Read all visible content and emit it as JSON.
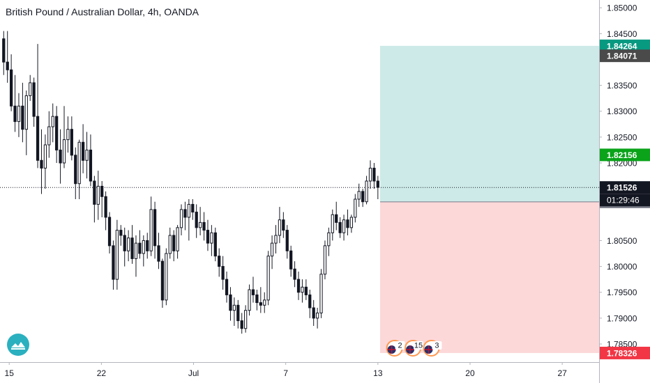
{
  "chart_data": {
    "type": "candlestick",
    "title": "British Pound / Australian Dollar, 4h, OANDA",
    "ylim": [
      1.7815,
      1.8515
    ],
    "y_ticks": [
      "1.85000",
      "1.84500",
      "1.83500",
      "1.83000",
      "1.82500",
      "1.82000",
      "1.80500",
      "1.80000",
      "1.79500",
      "1.79000",
      "1.78500"
    ],
    "x_ticks": [
      "15",
      "22",
      "Jul",
      "7",
      "13",
      "20",
      "27"
    ],
    "x_tick_pos": [
      0.5,
      5.5,
      10.5,
      15.5,
      20.5,
      25.5,
      30.5
    ],
    "x_max": 32.5,
    "current_price": {
      "value": 1.81526,
      "label": "1.81526",
      "countdown": "01:29:46"
    },
    "position": {
      "type": "long",
      "entry": 1.81248,
      "entry_label": "1.81248",
      "target": 1.84264,
      "target_label": "1.84264",
      "stop": 1.78326,
      "stop_label": "1.78326",
      "start_x": 20.62
    },
    "price_labels": [
      {
        "value": 1.84071,
        "label": "1.84071",
        "color": "#4a4a4a"
      },
      {
        "value": 1.82156,
        "label": "1.82156",
        "color": "#0aa319"
      }
    ],
    "events": [
      {
        "x": 21.4,
        "count": "2"
      },
      {
        "x": 22.4,
        "count": "15"
      },
      {
        "x": 23.4,
        "count": "3"
      }
    ],
    "colors": {
      "up": "#131722",
      "down": "#131722",
      "up_fill": "#ffffff",
      "down_fill": "#131722",
      "target_zone": "#cdeae8",
      "stop_zone": "#fcd8d9",
      "target_label": "#089981",
      "stop_label": "#f23645",
      "entry_label": "#787b86",
      "price_label": "#131722",
      "axis_text": "#131722",
      "axis_line": "#b2b5be"
    },
    "candles": [
      [
        1.844,
        1.8455,
        1.837,
        1.8395
      ],
      [
        1.8395,
        1.8455,
        1.8355,
        1.838
      ],
      [
        1.838,
        1.841,
        1.83,
        1.831
      ],
      [
        1.831,
        1.837,
        1.826,
        1.828
      ],
      [
        1.828,
        1.8335,
        1.825,
        1.831
      ],
      [
        1.831,
        1.8355,
        1.824,
        1.8265
      ],
      [
        1.8265,
        1.834,
        1.8215,
        1.833
      ],
      [
        1.833,
        1.837,
        1.832,
        1.8355
      ],
      [
        1.8355,
        1.8365,
        1.827,
        1.829
      ],
      [
        1.829,
        1.843,
        1.819,
        1.8205
      ],
      [
        1.8205,
        1.8265,
        1.814,
        1.819
      ],
      [
        1.819,
        1.8255,
        1.815,
        1.8235
      ],
      [
        1.8235,
        1.83,
        1.821,
        1.827
      ],
      [
        1.827,
        1.8315,
        1.824,
        1.829
      ],
      [
        1.829,
        1.831,
        1.82,
        1.8225
      ],
      [
        1.8225,
        1.8265,
        1.816,
        1.82
      ],
      [
        1.82,
        1.831,
        1.819,
        1.8245
      ],
      [
        1.8245,
        1.829,
        1.822,
        1.8265
      ],
      [
        1.8265,
        1.829,
        1.8205,
        1.8215
      ],
      [
        1.8215,
        1.823,
        1.813,
        1.816
      ],
      [
        1.816,
        1.8245,
        1.813,
        1.824
      ],
      [
        1.824,
        1.8275,
        1.818,
        1.8205
      ],
      [
        1.8205,
        1.826,
        1.817,
        1.8225
      ],
      [
        1.8225,
        1.8255,
        1.8155,
        1.8165
      ],
      [
        1.8165,
        1.8175,
        1.8085,
        1.812
      ],
      [
        1.812,
        1.8185,
        1.809,
        1.8155
      ],
      [
        1.8155,
        1.8165,
        1.8095,
        1.8135
      ],
      [
        1.8135,
        1.8145,
        1.807,
        1.8095
      ],
      [
        1.8095,
        1.8105,
        1.8025,
        1.804
      ],
      [
        1.804,
        1.805,
        1.7955,
        1.7975
      ],
      [
        1.7975,
        1.809,
        1.7955,
        1.807
      ],
      [
        1.807,
        1.808,
        1.804,
        1.806
      ],
      [
        1.806,
        1.8075,
        1.8,
        1.803
      ],
      [
        1.803,
        1.807,
        1.801,
        1.8055
      ],
      [
        1.8055,
        1.808,
        1.8005,
        1.8015
      ],
      [
        1.8015,
        1.806,
        1.798,
        1.8045
      ],
      [
        1.8045,
        1.807,
        1.8015,
        1.8025
      ],
      [
        1.8025,
        1.806,
        1.8,
        1.805
      ],
      [
        1.805,
        1.8065,
        1.8015,
        1.803
      ],
      [
        1.803,
        1.8135,
        1.802,
        1.811
      ],
      [
        1.811,
        1.8125,
        1.8015,
        1.804
      ],
      [
        1.804,
        1.8065,
        1.7995,
        1.801
      ],
      [
        1.801,
        1.8015,
        1.792,
        1.7935
      ],
      [
        1.7935,
        1.8035,
        1.7925,
        1.8025
      ],
      [
        1.8025,
        1.8075,
        1.8015,
        1.806
      ],
      [
        1.806,
        1.807,
        1.801,
        1.803
      ],
      [
        1.803,
        1.808,
        1.8015,
        1.8075
      ],
      [
        1.8075,
        1.812,
        1.806,
        1.811
      ],
      [
        1.811,
        1.8125,
        1.807,
        1.8095
      ],
      [
        1.8095,
        1.813,
        1.805,
        1.812
      ],
      [
        1.812,
        1.813,
        1.809,
        1.8105
      ],
      [
        1.8105,
        1.812,
        1.8055,
        1.8075
      ],
      [
        1.8075,
        1.8115,
        1.806,
        1.8085
      ],
      [
        1.8085,
        1.8105,
        1.805,
        1.807
      ],
      [
        1.807,
        1.809,
        1.803,
        1.8045
      ],
      [
        1.8045,
        1.808,
        1.802,
        1.8065
      ],
      [
        1.8065,
        1.8075,
        1.801,
        1.802
      ],
      [
        1.802,
        1.8035,
        1.798,
        1.8
      ],
      [
        1.8,
        1.802,
        1.7955,
        1.7975
      ],
      [
        1.7975,
        1.799,
        1.793,
        1.7945
      ],
      [
        1.7945,
        1.796,
        1.7895,
        1.7915
      ],
      [
        1.7915,
        1.794,
        1.7885,
        1.7925
      ],
      [
        1.7925,
        1.7935,
        1.788,
        1.7895
      ],
      [
        1.7895,
        1.791,
        1.787,
        1.788
      ],
      [
        1.788,
        1.7925,
        1.7872,
        1.7915
      ],
      [
        1.7915,
        1.7965,
        1.7905,
        1.7955
      ],
      [
        1.7955,
        1.798,
        1.793,
        1.7945
      ],
      [
        1.7945,
        1.7955,
        1.7915,
        1.793
      ],
      [
        1.793,
        1.796,
        1.791,
        1.7925
      ],
      [
        1.7925,
        1.795,
        1.791,
        1.7935
      ],
      [
        1.7935,
        1.803,
        1.7925,
        1.802
      ],
      [
        1.802,
        1.806,
        1.7995,
        1.8045
      ],
      [
        1.8045,
        1.808,
        1.8025,
        1.806
      ],
      [
        1.806,
        1.8115,
        1.8045,
        1.809
      ],
      [
        1.809,
        1.8105,
        1.8055,
        1.807
      ],
      [
        1.807,
        1.808,
        1.8015,
        1.803
      ],
      [
        1.803,
        1.804,
        1.798,
        1.7995
      ],
      [
        1.7995,
        1.801,
        1.796,
        1.7975
      ],
      [
        1.7975,
        1.799,
        1.7935,
        1.795
      ],
      [
        1.795,
        1.7975,
        1.793,
        1.796
      ],
      [
        1.796,
        1.7975,
        1.7935,
        1.7945
      ],
      [
        1.7945,
        1.7955,
        1.79,
        1.792
      ],
      [
        1.792,
        1.7935,
        1.7885,
        1.79
      ],
      [
        1.79,
        1.792,
        1.788,
        1.791
      ],
      [
        1.791,
        1.7995,
        1.79,
        1.7985
      ],
      [
        1.7985,
        1.805,
        1.7975,
        1.804
      ],
      [
        1.804,
        1.8075,
        1.802,
        1.8065
      ],
      [
        1.8065,
        1.811,
        1.805,
        1.81
      ],
      [
        1.81,
        1.8125,
        1.807,
        1.8085
      ],
      [
        1.8085,
        1.8095,
        1.8055,
        1.8065
      ],
      [
        1.8065,
        1.81,
        1.805,
        1.809
      ],
      [
        1.809,
        1.811,
        1.806,
        1.8075
      ],
      [
        1.8075,
        1.81,
        1.8065,
        1.8095
      ],
      [
        1.8095,
        1.814,
        1.8085,
        1.813
      ],
      [
        1.813,
        1.816,
        1.8115,
        1.8145
      ],
      [
        1.8145,
        1.815,
        1.8115,
        1.8125
      ],
      [
        1.8125,
        1.8175,
        1.812,
        1.8165
      ],
      [
        1.8165,
        1.8205,
        1.815,
        1.819
      ],
      [
        1.819,
        1.82,
        1.815,
        1.8165
      ],
      [
        1.8165,
        1.8175,
        1.813,
        1.8153
      ]
    ]
  }
}
